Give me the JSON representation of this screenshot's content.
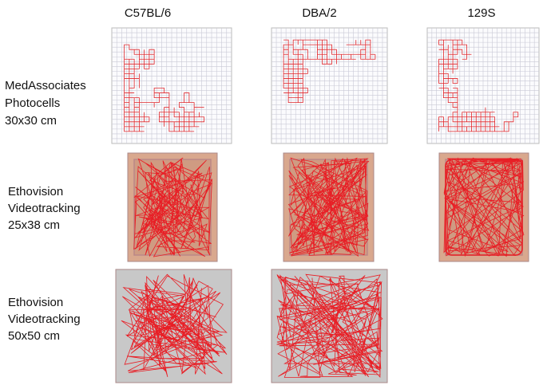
{
  "columns": [
    "C57BL/6",
    "DBA/2",
    "129S"
  ],
  "rows": [
    {
      "lines": [
        "MedAssociates",
        "Photocells",
        "30x30 cm"
      ]
    },
    {
      "lines": [
        "Ethovision",
        "Videotracking",
        "25x38 cm"
      ]
    },
    {
      "lines": [
        "Ethovision",
        "Videotracking",
        "50x50 cm"
      ]
    }
  ]
}
